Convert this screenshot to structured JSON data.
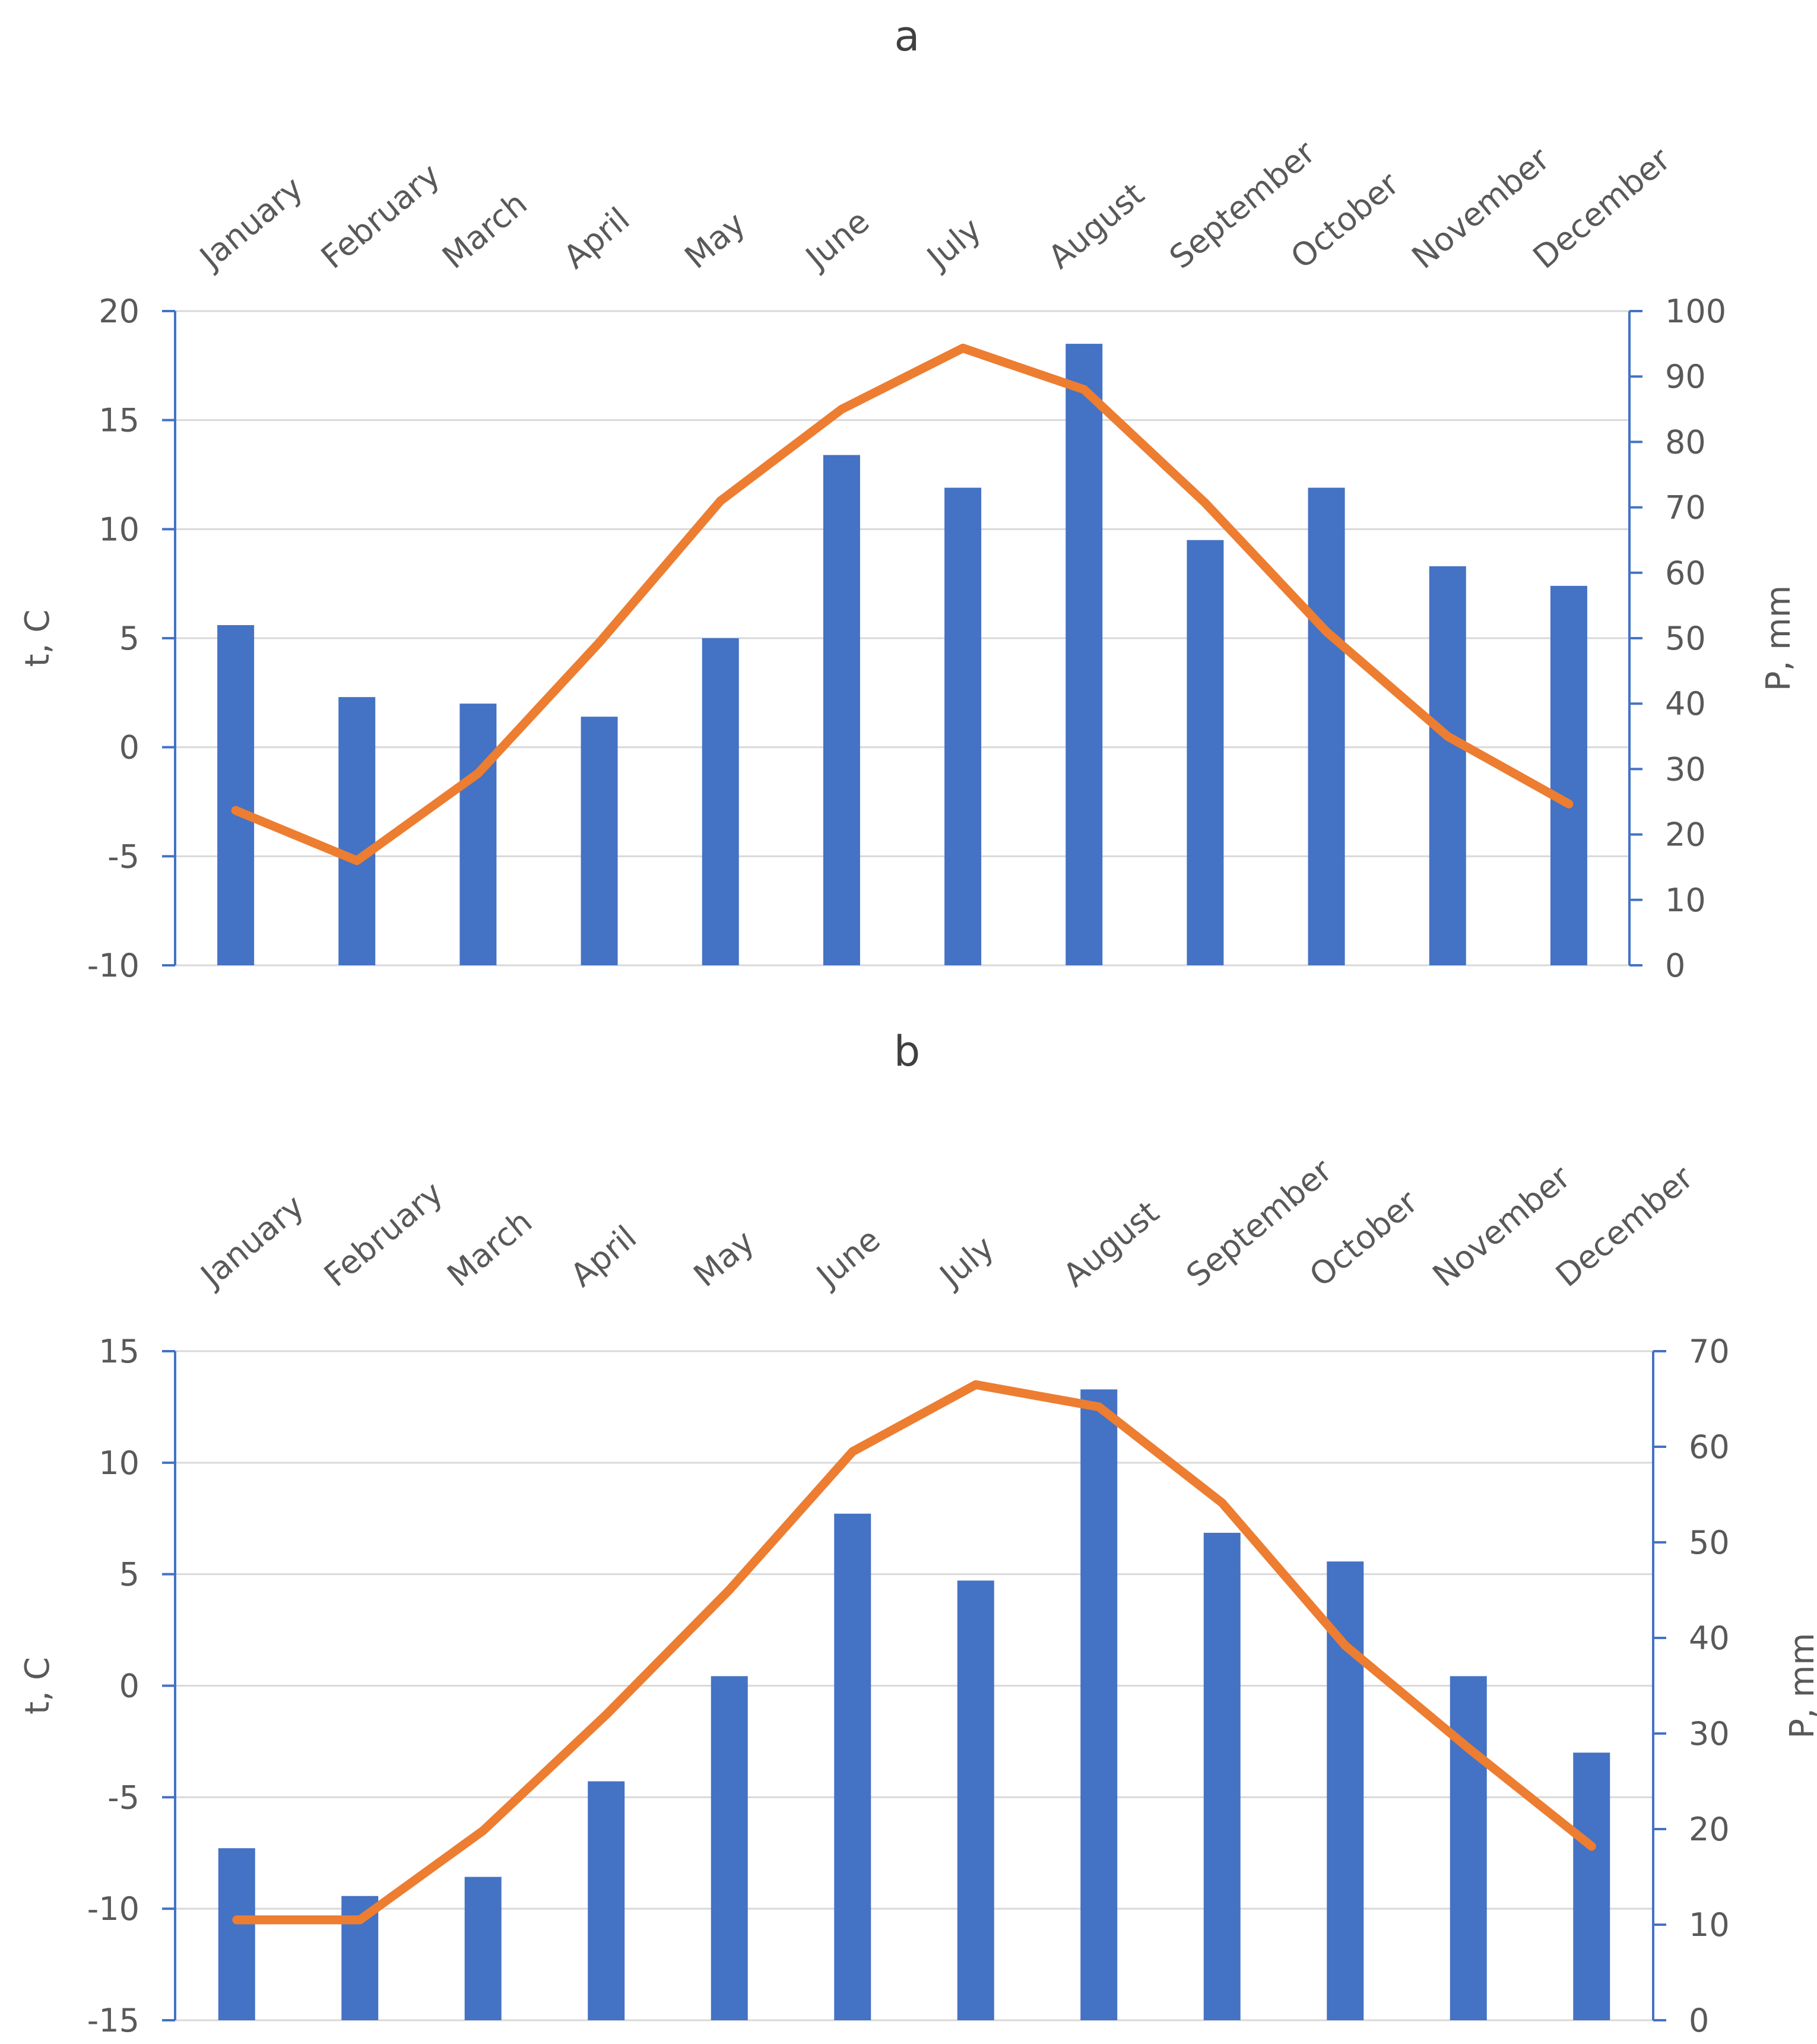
{
  "colors": {
    "bars": "#4472C4",
    "line": "#ED7D31",
    "gridline": "#D9D9D9",
    "axis": "#4472C4",
    "text": "#595959",
    "panel_label": "#404040"
  },
  "chart_data": [
    {
      "panel_label": "a",
      "type": "bar",
      "categories": [
        "January",
        "February",
        "March",
        "April",
        "May",
        "June",
        "July",
        "August",
        "September",
        "October",
        "November",
        "December"
      ],
      "xaxis_position": "top",
      "ylabel": "t, C",
      "ylim": [
        -10,
        20
      ],
      "yticks": [
        -10,
        -5,
        0,
        5,
        10,
        15,
        20
      ],
      "y2label": "P, mm",
      "y2lim": [
        0,
        100
      ],
      "y2ticks": [
        0,
        10,
        20,
        30,
        40,
        50,
        60,
        70,
        80,
        90,
        100
      ],
      "grid": true,
      "series": [
        {
          "type": "bar",
          "axis": "right",
          "values": [
            52,
            41,
            40,
            38,
            50,
            78,
            73,
            95,
            65,
            73,
            61,
            58
          ]
        },
        {
          "type": "line",
          "axis": "left",
          "values": [
            -2.9,
            -5.2,
            -1.2,
            4.8,
            11.3,
            15.5,
            18.3,
            16.4,
            11.2,
            5.3,
            0.5,
            -2.6
          ]
        }
      ]
    },
    {
      "panel_label": "b",
      "type": "bar",
      "categories": [
        "January",
        "February",
        "March",
        "April",
        "May",
        "June",
        "July",
        "August",
        "September",
        "October",
        "November",
        "December"
      ],
      "xaxis_position": "top",
      "ylabel": "t, C",
      "ylim": [
        -15,
        15
      ],
      "yticks": [
        -15,
        -10,
        -5,
        0,
        5,
        10,
        15
      ],
      "y2label": "P, mm",
      "y2lim": [
        0,
        70
      ],
      "y2ticks": [
        0,
        10,
        20,
        30,
        40,
        50,
        60,
        70
      ],
      "grid": true,
      "series": [
        {
          "type": "bar",
          "axis": "right",
          "values": [
            18,
            13,
            15,
            25,
            36,
            53,
            46,
            66,
            51,
            48,
            36,
            28
          ]
        },
        {
          "type": "line",
          "axis": "left",
          "values": [
            -10.5,
            -10.5,
            -6.5,
            -1.3,
            4.3,
            10.5,
            13.5,
            12.5,
            8.2,
            1.8,
            -2.8,
            -7.2
          ]
        }
      ]
    }
  ]
}
